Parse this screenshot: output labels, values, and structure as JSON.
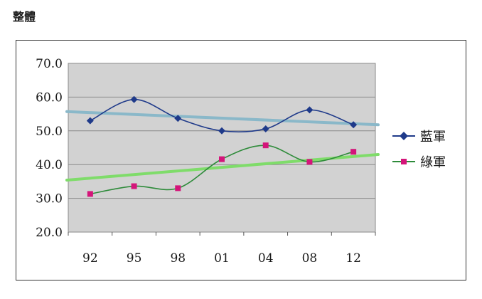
{
  "page": {
    "title": "整體"
  },
  "colors": {
    "plot_bg": "#d2d2d2",
    "grid": "#8a8a8a",
    "blue_series": "#1f3a8a",
    "green_series": "#2e8b3a",
    "blue_trend": "#8ab8c9",
    "green_trend": "#7fdc6a",
    "pink_marker": "#d4157a"
  },
  "chart_data": {
    "type": "line",
    "title": "",
    "xlabel": "",
    "ylabel": "",
    "categories": [
      "92",
      "95",
      "98",
      "01",
      "04",
      "08",
      "12"
    ],
    "ylim": [
      20,
      70
    ],
    "yticks": [
      "70.0",
      "60.0",
      "50.0",
      "40.0",
      "30.0",
      "20.0"
    ],
    "grid": true,
    "legend_position": "right",
    "series": [
      {
        "name": "藍軍",
        "marker": "diamond",
        "color": "#1f3a8a",
        "smooth": true,
        "values": [
          53.0,
          59.3,
          53.7,
          50.0,
          50.6,
          56.2,
          51.8
        ],
        "trend": [
          55.7,
          51.8
        ]
      },
      {
        "name": "綠軍",
        "marker": "square",
        "color": "#2e8b3a",
        "marker_color": "#d4157a",
        "smooth": true,
        "values": [
          31.3,
          33.6,
          33.0,
          41.6,
          45.7,
          40.8,
          43.8
        ],
        "trend": [
          35.4,
          43.0
        ]
      }
    ]
  }
}
